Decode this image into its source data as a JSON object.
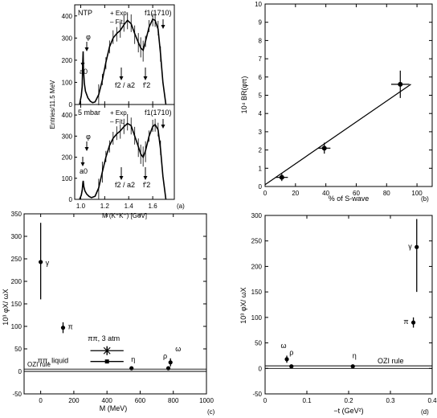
{
  "chart_data": [
    {
      "panel": "(a)",
      "type": "line",
      "ylabel": "Entries/11.5 MeV",
      "xlabel": "M (K⁺K⁻) [GeV]",
      "xlim": [
        0.95,
        1.78
      ],
      "x_ticks": [
        "1.0",
        "1.2",
        "1.4",
        "1.6"
      ],
      "y_ticks": [
        "0",
        "100",
        "200",
        "300",
        "400"
      ],
      "subplots": [
        {
          "name": "NTP",
          "legend": [
            "+ Exp.",
            "– Fit."
          ],
          "ylim": [
            0,
            450
          ],
          "annotations": [
            "φ",
            "a0",
            "f2 / a2",
            "f′2",
            "f1(1710)"
          ],
          "fit": [
            [
              0.99,
              0
            ],
            [
              1.005,
              40
            ],
            [
              1.012,
              80
            ],
            [
              1.017,
              190
            ],
            [
              1.02,
              240
            ],
            [
              1.023,
              160
            ],
            [
              1.03,
              95
            ],
            [
              1.04,
              60
            ],
            [
              1.06,
              30
            ],
            [
              1.08,
              15
            ],
            [
              1.1,
              8
            ],
            [
              1.12,
              12
            ],
            [
              1.15,
              45
            ],
            [
              1.18,
              110
            ],
            [
              1.21,
              190
            ],
            [
              1.24,
              260
            ],
            [
              1.27,
              300
            ],
            [
              1.3,
              320
            ],
            [
              1.33,
              335
            ],
            [
              1.36,
              360
            ],
            [
              1.39,
              380
            ],
            [
              1.42,
              365
            ],
            [
              1.45,
              320
            ],
            [
              1.48,
              280
            ],
            [
              1.5,
              255
            ],
            [
              1.52,
              245
            ],
            [
              1.54,
              285
            ],
            [
              1.57,
              350
            ],
            [
              1.6,
              385
            ],
            [
              1.62,
              380
            ],
            [
              1.645,
              340
            ],
            [
              1.665,
              230
            ],
            [
              1.685,
              100
            ],
            [
              1.71,
              0
            ]
          ]
        },
        {
          "name": "5 mbar",
          "legend": [
            "+ Exp.",
            "– Fit."
          ],
          "ylim": [
            0,
            450
          ],
          "annotations": [
            "φ",
            "a0",
            "f2 / a2",
            "f′2",
            "f1(1710)"
          ],
          "fit": [
            [
              0.99,
              0
            ],
            [
              1.005,
              20
            ],
            [
              1.013,
              45
            ],
            [
              1.018,
              80
            ],
            [
              1.021,
              88
            ],
            [
              1.026,
              60
            ],
            [
              1.035,
              40
            ],
            [
              1.05,
              25
            ],
            [
              1.07,
              14
            ],
            [
              1.09,
              8
            ],
            [
              1.12,
              15
            ],
            [
              1.15,
              55
            ],
            [
              1.18,
              130
            ],
            [
              1.21,
              200
            ],
            [
              1.24,
              255
            ],
            [
              1.27,
              290
            ],
            [
              1.3,
              310
            ],
            [
              1.33,
              325
            ],
            [
              1.36,
              345
            ],
            [
              1.39,
              360
            ],
            [
              1.42,
              350
            ],
            [
              1.45,
              300
            ],
            [
              1.48,
              250
            ],
            [
              1.5,
              215
            ],
            [
              1.52,
              200
            ],
            [
              1.54,
              230
            ],
            [
              1.57,
              300
            ],
            [
              1.6,
              345
            ],
            [
              1.62,
              355
            ],
            [
              1.645,
              330
            ],
            [
              1.665,
              240
            ],
            [
              1.685,
              110
            ],
            [
              1.71,
              0
            ]
          ]
        }
      ]
    },
    {
      "panel": "(b)",
      "type": "scatter",
      "xlabel": "% of S-wave",
      "ylabel": "10⁴ BR(φπ)",
      "xlim": [
        0,
        110
      ],
      "ylim": [
        0,
        10
      ],
      "x_ticks": [
        "0",
        "20",
        "40",
        "60",
        "80",
        "100"
      ],
      "y_ticks": [
        "0",
        "1",
        "2",
        "3",
        "4",
        "5",
        "6",
        "7",
        "8",
        "9",
        "10"
      ],
      "points": [
        {
          "x": 11,
          "y": 0.5,
          "xerr": 4,
          "yerr": 0.2
        },
        {
          "x": 39,
          "y": 2.1,
          "xerr": 4,
          "yerr": 0.3
        },
        {
          "x": 89,
          "y": 5.6,
          "xerr": 6,
          "yerr": 0.75
        }
      ],
      "fit_line": [
        [
          0,
          0.1
        ],
        [
          96,
          5.6
        ]
      ]
    },
    {
      "panel": "(c)",
      "type": "scatter",
      "xlabel": "M (MeV)",
      "ylabel": "10³ φX/ ωX",
      "xlim": [
        -100,
        1000
      ],
      "ylim": [
        -50,
        350
      ],
      "x_ticks": [
        "0",
        "200",
        "400",
        "600",
        "800",
        "1000"
      ],
      "y_ticks": [
        "-50",
        "0",
        "50",
        "100",
        "150",
        "200",
        "250",
        "300",
        "350"
      ],
      "points": [
        {
          "label": "γ",
          "x": 0,
          "y": 243,
          "yerr_low": 83,
          "yerr_high": 87
        },
        {
          "label": "π",
          "x": 135,
          "y": 97,
          "yerr_low": 12,
          "yerr_high": 12
        },
        {
          "label": "ππ, 3 atm",
          "x": 400,
          "y": 46,
          "xerr": 100,
          "yerr": 10
        },
        {
          "label": "ππ, liquid",
          "x": 400,
          "y": 22,
          "xerr": 100,
          "yerr": 3
        },
        {
          "label": "η",
          "x": 548,
          "y": 7
        },
        {
          "label": "ρ",
          "x": 770,
          "y": 7
        },
        {
          "label": "ω",
          "x": 783,
          "y": 20,
          "yerr": 9
        }
      ],
      "reference_label": "OZI rule",
      "reference_band": [
        0,
        5
      ]
    },
    {
      "panel": "(d)",
      "type": "scatter",
      "xlabel": "−t (GeV²)",
      "ylabel": "10³ φX/ ωX",
      "xlim": [
        0,
        0.4
      ],
      "ylim": [
        -50,
        300
      ],
      "x_ticks": [
        "0",
        "0.1",
        "0.2",
        "0.3",
        "0.4"
      ],
      "y_ticks": [
        "-50",
        "0",
        "50",
        "100",
        "150",
        "200",
        "250",
        "300"
      ],
      "points": [
        {
          "label": "ω",
          "x": 0.052,
          "y": 18,
          "yerr": 7
        },
        {
          "label": "ρ",
          "x": 0.063,
          "y": 4
        },
        {
          "label": "η",
          "x": 0.21,
          "y": 4
        },
        {
          "label": "π",
          "x": 0.355,
          "y": 90,
          "yerr": 10
        },
        {
          "label": "γ",
          "x": 0.363,
          "y": 238,
          "yerr_low": 88,
          "yerr_high": 55
        }
      ],
      "reference_label": "OZI rule",
      "reference_band": [
        0,
        5
      ]
    }
  ]
}
